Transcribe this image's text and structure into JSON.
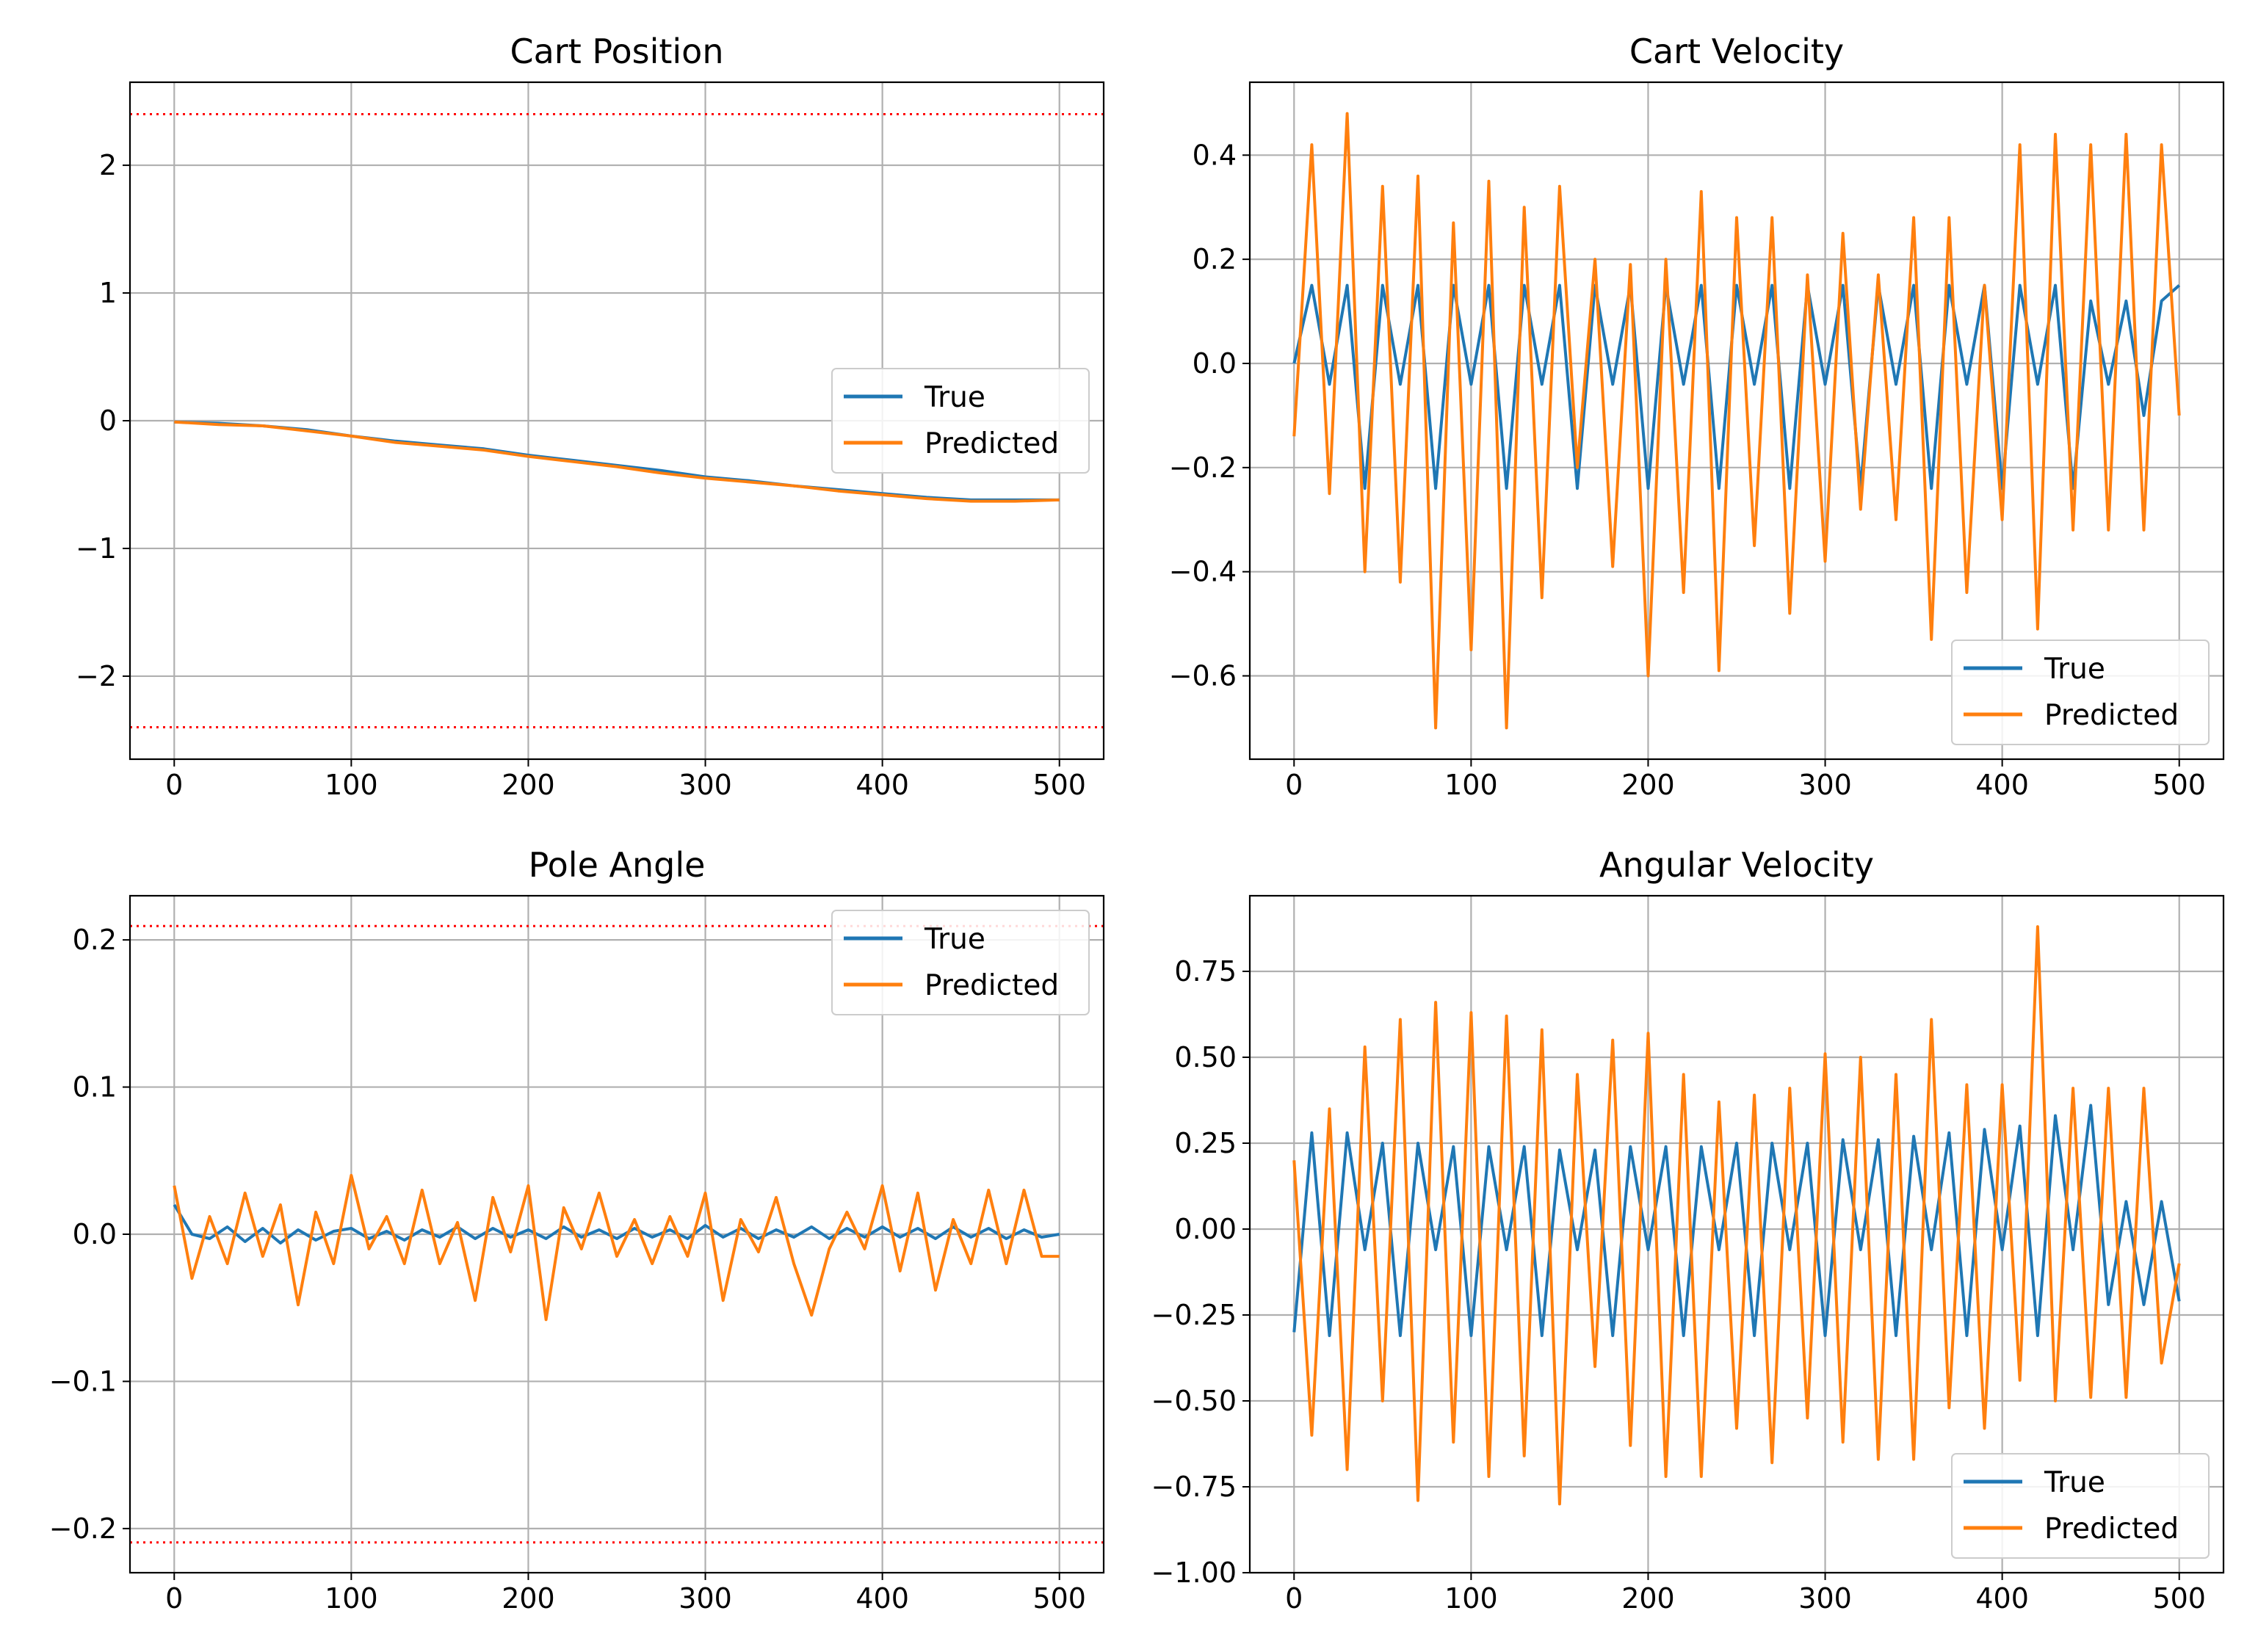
{
  "colors": {
    "true_series": "#1f77b4",
    "predicted_series": "#ff7f0e",
    "threshold_line": "#ff0000",
    "grid": "#b0b0b0"
  },
  "chart_data": [
    {
      "type": "line",
      "title": "Cart Position",
      "xlabel": "",
      "ylabel": "",
      "xlim": [
        -25,
        525
      ],
      "ylim": [
        -2.65,
        2.65
      ],
      "xticks": [
        0,
        100,
        200,
        300,
        400,
        500
      ],
      "yticks": [
        -2,
        -1,
        0,
        1,
        2
      ],
      "ytick_labels": [
        "−2",
        "−1",
        "0",
        "1",
        "2"
      ],
      "grid": true,
      "legend": "center-right",
      "thresholds": [
        2.4,
        -2.4
      ],
      "series": [
        {
          "name": "True",
          "x": [
            0,
            25,
            50,
            75,
            100,
            125,
            150,
            175,
            200,
            225,
            250,
            275,
            300,
            325,
            350,
            375,
            400,
            425,
            450,
            475,
            500
          ],
          "y": [
            -0.01,
            -0.02,
            -0.04,
            -0.07,
            -0.12,
            -0.16,
            -0.19,
            -0.22,
            -0.27,
            -0.31,
            -0.35,
            -0.39,
            -0.44,
            -0.47,
            -0.51,
            -0.54,
            -0.57,
            -0.6,
            -0.62,
            -0.62,
            -0.62
          ]
        },
        {
          "name": "Predicted",
          "x": [
            0,
            25,
            50,
            75,
            100,
            125,
            150,
            175,
            200,
            225,
            250,
            275,
            300,
            325,
            350,
            375,
            400,
            425,
            450,
            475,
            500
          ],
          "y": [
            -0.01,
            -0.03,
            -0.04,
            -0.08,
            -0.12,
            -0.17,
            -0.2,
            -0.23,
            -0.28,
            -0.32,
            -0.36,
            -0.41,
            -0.45,
            -0.48,
            -0.51,
            -0.55,
            -0.58,
            -0.61,
            -0.63,
            -0.63,
            -0.62
          ]
        }
      ]
    },
    {
      "type": "line",
      "title": "Cart Velocity",
      "xlabel": "",
      "ylabel": "",
      "xlim": [
        -25,
        525
      ],
      "ylim": [
        -0.76,
        0.54
      ],
      "xticks": [
        0,
        100,
        200,
        300,
        400,
        500
      ],
      "yticks": [
        -0.6,
        -0.4,
        -0.2,
        0.0,
        0.2,
        0.4
      ],
      "ytick_labels": [
        "−0.6",
        "−0.4",
        "−0.2",
        "0.0",
        "0.2",
        "0.4"
      ],
      "grid": true,
      "legend": "bottom-right",
      "series": [
        {
          "name": "True",
          "x": [
            0,
            10,
            20,
            30,
            40,
            50,
            60,
            70,
            80,
            90,
            100,
            110,
            120,
            130,
            140,
            150,
            160,
            170,
            180,
            190,
            200,
            210,
            220,
            230,
            240,
            250,
            260,
            270,
            280,
            290,
            300,
            310,
            320,
            330,
            340,
            350,
            360,
            370,
            380,
            390,
            400,
            410,
            420,
            430,
            440,
            450,
            460,
            470,
            480,
            490,
            500
          ],
          "y": [
            0.0,
            0.15,
            -0.04,
            0.15,
            -0.24,
            0.15,
            -0.04,
            0.15,
            -0.24,
            0.15,
            -0.04,
            0.15,
            -0.24,
            0.15,
            -0.04,
            0.15,
            -0.24,
            0.15,
            -0.04,
            0.15,
            -0.24,
            0.15,
            -0.04,
            0.15,
            -0.24,
            0.15,
            -0.04,
            0.15,
            -0.24,
            0.15,
            -0.04,
            0.15,
            -0.24,
            0.15,
            -0.04,
            0.15,
            -0.24,
            0.15,
            -0.04,
            0.15,
            -0.24,
            0.15,
            -0.04,
            0.15,
            -0.24,
            0.12,
            -0.04,
            0.12,
            -0.1,
            0.12,
            0.15
          ]
        },
        {
          "name": "Predicted",
          "x": [
            0,
            10,
            20,
            30,
            40,
            50,
            60,
            70,
            80,
            90,
            100,
            110,
            120,
            130,
            140,
            150,
            160,
            170,
            180,
            190,
            200,
            210,
            220,
            230,
            240,
            250,
            260,
            270,
            280,
            290,
            300,
            310,
            320,
            330,
            340,
            350,
            360,
            370,
            380,
            390,
            400,
            410,
            420,
            430,
            440,
            450,
            460,
            470,
            480,
            490,
            500
          ],
          "y": [
            -0.14,
            0.42,
            -0.25,
            0.48,
            -0.4,
            0.34,
            -0.42,
            0.36,
            -0.7,
            0.27,
            -0.55,
            0.35,
            -0.7,
            0.3,
            -0.45,
            0.34,
            -0.2,
            0.2,
            -0.39,
            0.19,
            -0.6,
            0.2,
            -0.44,
            0.33,
            -0.59,
            0.28,
            -0.35,
            0.28,
            -0.48,
            0.17,
            -0.38,
            0.25,
            -0.28,
            0.17,
            -0.3,
            0.28,
            -0.53,
            0.28,
            -0.44,
            0.15,
            -0.3,
            0.42,
            -0.51,
            0.44,
            -0.32,
            0.42,
            -0.32,
            0.44,
            -0.32,
            0.42,
            -0.1
          ]
        }
      ]
    },
    {
      "type": "line",
      "title": "Pole Angle",
      "xlabel": "",
      "ylabel": "",
      "xlim": [
        -25,
        525
      ],
      "ylim": [
        -0.23,
        0.23
      ],
      "xticks": [
        0,
        100,
        200,
        300,
        400,
        500
      ],
      "yticks": [
        -0.2,
        -0.1,
        0.0,
        0.1,
        0.2
      ],
      "ytick_labels": [
        "−0.2",
        "−0.1",
        "0.0",
        "0.1",
        "0.2"
      ],
      "grid": true,
      "legend": "top-right",
      "thresholds": [
        0.2094,
        -0.2094
      ],
      "series": [
        {
          "name": "True",
          "x": [
            0,
            10,
            20,
            30,
            40,
            50,
            60,
            70,
            80,
            90,
            100,
            110,
            120,
            130,
            140,
            150,
            160,
            170,
            180,
            190,
            200,
            210,
            220,
            230,
            240,
            250,
            260,
            270,
            280,
            290,
            300,
            310,
            320,
            330,
            340,
            350,
            360,
            370,
            380,
            390,
            400,
            410,
            420,
            430,
            440,
            450,
            460,
            470,
            480,
            490,
            500
          ],
          "y": [
            0.02,
            0.0,
            -0.003,
            0.005,
            -0.005,
            0.004,
            -0.006,
            0.003,
            -0.004,
            0.002,
            0.004,
            -0.003,
            0.002,
            -0.004,
            0.003,
            -0.002,
            0.005,
            -0.003,
            0.004,
            -0.002,
            0.003,
            -0.003,
            0.005,
            -0.002,
            0.003,
            -0.003,
            0.004,
            -0.002,
            0.003,
            -0.003,
            0.006,
            -0.002,
            0.004,
            -0.003,
            0.003,
            -0.002,
            0.005,
            -0.003,
            0.004,
            -0.002,
            0.005,
            -0.002,
            0.004,
            -0.003,
            0.005,
            -0.002,
            0.004,
            -0.003,
            0.003,
            -0.002,
            0.0
          ]
        },
        {
          "name": "Predicted",
          "x": [
            0,
            10,
            20,
            30,
            40,
            50,
            60,
            70,
            80,
            90,
            100,
            110,
            120,
            130,
            140,
            150,
            160,
            170,
            180,
            190,
            200,
            210,
            220,
            230,
            240,
            250,
            260,
            270,
            280,
            290,
            300,
            310,
            320,
            330,
            340,
            350,
            360,
            370,
            380,
            390,
            400,
            410,
            420,
            430,
            440,
            450,
            460,
            470,
            480,
            490,
            500
          ],
          "y": [
            0.033,
            -0.03,
            0.012,
            -0.02,
            0.028,
            -0.015,
            0.02,
            -0.048,
            0.015,
            -0.02,
            0.04,
            -0.01,
            0.012,
            -0.02,
            0.03,
            -0.02,
            0.008,
            -0.045,
            0.025,
            -0.012,
            0.033,
            -0.058,
            0.018,
            -0.01,
            0.028,
            -0.015,
            0.01,
            -0.02,
            0.012,
            -0.015,
            0.028,
            -0.045,
            0.01,
            -0.012,
            0.025,
            -0.02,
            -0.055,
            -0.01,
            0.015,
            -0.01,
            0.033,
            -0.025,
            0.028,
            -0.038,
            0.01,
            -0.02,
            0.03,
            -0.02,
            0.03,
            -0.015,
            -0.015
          ]
        }
      ]
    },
    {
      "type": "line",
      "title": "Angular Velocity",
      "xlabel": "",
      "ylabel": "",
      "xlim": [
        -25,
        525
      ],
      "ylim": [
        -1.0,
        0.97
      ],
      "xticks": [
        0,
        100,
        200,
        300,
        400,
        500
      ],
      "yticks": [
        -1.0,
        -0.75,
        -0.5,
        -0.25,
        0.0,
        0.25,
        0.5,
        0.75
      ],
      "ytick_labels": [
        "−1.00",
        "−0.75",
        "−0.50",
        "−0.25",
        "0.00",
        "0.25",
        "0.50",
        "0.75"
      ],
      "grid": true,
      "legend": "bottom-right",
      "series": [
        {
          "name": "True",
          "x": [
            0,
            10,
            20,
            30,
            40,
            50,
            60,
            70,
            80,
            90,
            100,
            110,
            120,
            130,
            140,
            150,
            160,
            170,
            180,
            190,
            200,
            210,
            220,
            230,
            240,
            250,
            260,
            270,
            280,
            290,
            300,
            310,
            320,
            330,
            340,
            350,
            360,
            370,
            380,
            390,
            400,
            410,
            420,
            430,
            440,
            450,
            460,
            470,
            480,
            490,
            500
          ],
          "y": [
            -0.3,
            0.28,
            -0.31,
            0.28,
            -0.06,
            0.25,
            -0.31,
            0.25,
            -0.06,
            0.24,
            -0.31,
            0.24,
            -0.06,
            0.24,
            -0.31,
            0.23,
            -0.06,
            0.23,
            -0.31,
            0.24,
            -0.06,
            0.24,
            -0.31,
            0.24,
            -0.06,
            0.25,
            -0.31,
            0.25,
            -0.06,
            0.25,
            -0.31,
            0.26,
            -0.06,
            0.26,
            -0.31,
            0.27,
            -0.06,
            0.28,
            -0.31,
            0.29,
            -0.06,
            0.3,
            -0.31,
            0.33,
            -0.06,
            0.36,
            -0.22,
            0.08,
            -0.22,
            0.08,
            -0.21
          ]
        },
        {
          "name": "Predicted",
          "x": [
            0,
            10,
            20,
            30,
            40,
            50,
            60,
            70,
            80,
            90,
            100,
            110,
            120,
            130,
            140,
            150,
            160,
            170,
            180,
            190,
            200,
            210,
            220,
            230,
            240,
            250,
            260,
            270,
            280,
            290,
            300,
            310,
            320,
            330,
            340,
            350,
            360,
            370,
            380,
            390,
            400,
            410,
            420,
            430,
            440,
            450,
            460,
            470,
            480,
            490,
            500
          ],
          "y": [
            0.2,
            -0.6,
            0.35,
            -0.7,
            0.53,
            -0.5,
            0.61,
            -0.79,
            0.66,
            -0.62,
            0.63,
            -0.72,
            0.62,
            -0.66,
            0.58,
            -0.8,
            0.45,
            -0.4,
            0.55,
            -0.63,
            0.57,
            -0.72,
            0.45,
            -0.72,
            0.37,
            -0.58,
            0.39,
            -0.68,
            0.41,
            -0.55,
            0.51,
            -0.62,
            0.5,
            -0.67,
            0.45,
            -0.67,
            0.61,
            -0.52,
            0.42,
            -0.58,
            0.42,
            -0.44,
            0.88,
            -0.5,
            0.41,
            -0.49,
            0.41,
            -0.49,
            0.41,
            -0.39,
            -0.1
          ]
        }
      ]
    }
  ]
}
